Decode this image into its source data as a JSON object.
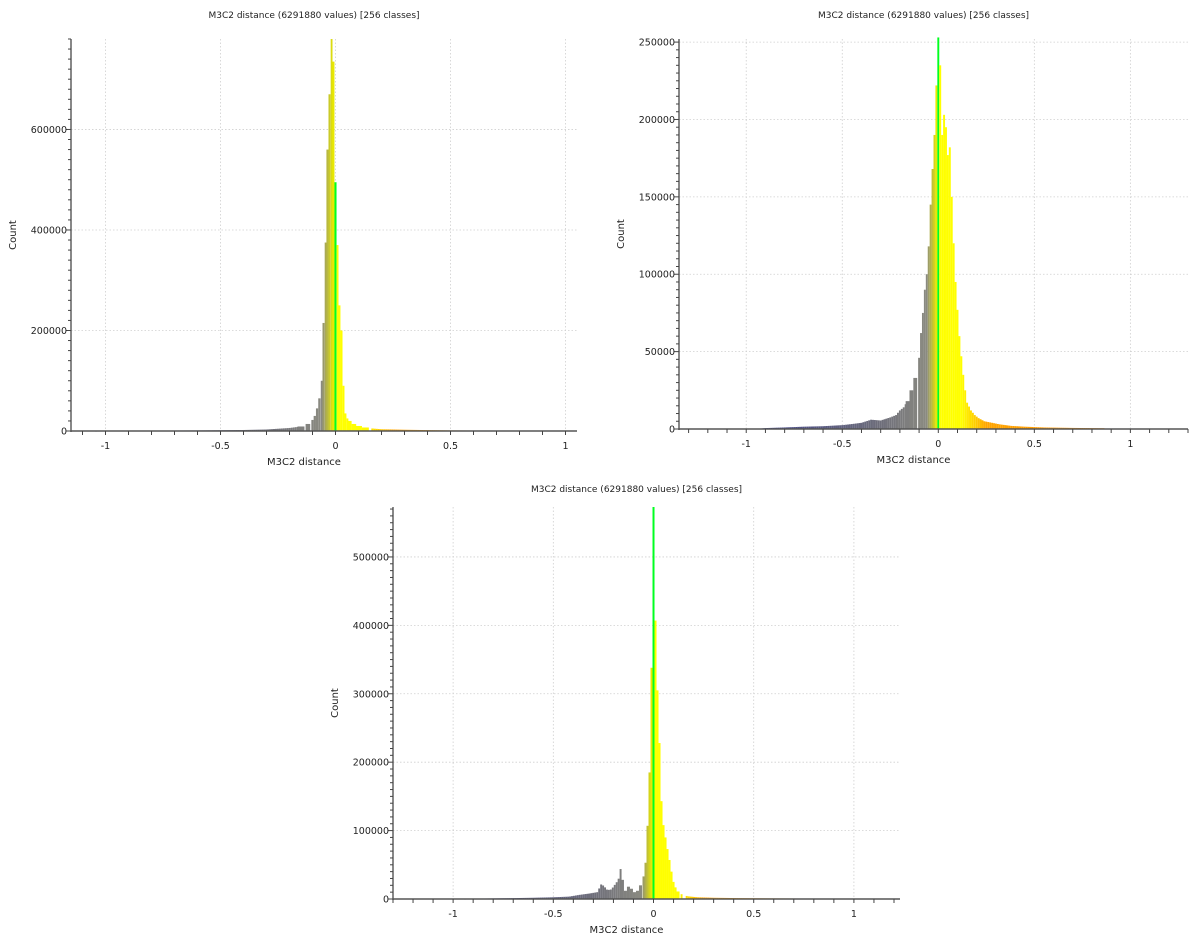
{
  "chart_data": [
    {
      "type": "bar",
      "title": "M3C2 distance (6291880 values)  [256 classes]",
      "xlabel": "M3C2 distance",
      "ylabel": "Count",
      "xlim": [
        -1.15,
        1.05
      ],
      "ylim": [
        0,
        780000
      ],
      "xticks": [
        -1,
        -0.5,
        0,
        0.5,
        1
      ],
      "xtick_labels": [
        "-1",
        "-0.5",
        "0",
        "0.5",
        "1"
      ],
      "yticks": [
        0,
        200000,
        400000,
        600000
      ],
      "ytick_labels": [
        "0",
        "200000",
        "400000",
        "600000"
      ],
      "grid": true,
      "bin_width": 0.0086,
      "bins": [
        {
          "x": -1.0,
          "y": 500
        },
        {
          "x": -0.8,
          "y": 800
        },
        {
          "x": -0.6,
          "y": 1200
        },
        {
          "x": -0.4,
          "y": 2000
        },
        {
          "x": -0.3,
          "y": 3000
        },
        {
          "x": -0.2,
          "y": 6000
        },
        {
          "x": -0.15,
          "y": 9000
        },
        {
          "x": -0.12,
          "y": 14000
        },
        {
          "x": -0.1,
          "y": 22000
        },
        {
          "x": -0.09,
          "y": 30000
        },
        {
          "x": -0.08,
          "y": 45000
        },
        {
          "x": -0.07,
          "y": 65000
        },
        {
          "x": -0.06,
          "y": 100000
        },
        {
          "x": -0.052,
          "y": 215000
        },
        {
          "x": -0.043,
          "y": 375000
        },
        {
          "x": -0.035,
          "y": 560000
        },
        {
          "x": -0.026,
          "y": 670000
        },
        {
          "x": -0.017,
          "y": 780000
        },
        {
          "x": -0.009,
          "y": 735000
        },
        {
          "x": 0.0,
          "y": 495000
        },
        {
          "x": 0.009,
          "y": 370000
        },
        {
          "x": 0.017,
          "y": 250000
        },
        {
          "x": 0.026,
          "y": 200000
        },
        {
          "x": 0.035,
          "y": 90000
        },
        {
          "x": 0.043,
          "y": 35000
        },
        {
          "x": 0.052,
          "y": 25000
        },
        {
          "x": 0.06,
          "y": 20000
        },
        {
          "x": 0.08,
          "y": 14000
        },
        {
          "x": 0.1,
          "y": 10000
        },
        {
          "x": 0.13,
          "y": 7000
        },
        {
          "x": 0.16,
          "y": 5000
        },
        {
          "x": 0.2,
          "y": 3500
        },
        {
          "x": 0.3,
          "y": 2500
        },
        {
          "x": 0.4,
          "y": 1800
        },
        {
          "x": 0.5,
          "y": 1200
        },
        {
          "x": 0.7,
          "y": 800
        },
        {
          "x": 0.86,
          "y": 600
        }
      ]
    },
    {
      "type": "bar",
      "title": "M3C2 distance (6291880 values)  [256 classes]",
      "xlabel": "M3C2 distance",
      "ylabel": "Count",
      "xlim": [
        -1.35,
        1.3
      ],
      "ylim": [
        0,
        252000
      ],
      "xticks": [
        -1,
        -0.5,
        0,
        0.5,
        1
      ],
      "xtick_labels": [
        "-1",
        "-0.5",
        "0",
        "0.5",
        "1"
      ],
      "yticks": [
        0,
        50000,
        100000,
        150000,
        200000,
        250000
      ],
      "ytick_labels": [
        "0",
        "50000",
        "100000",
        "150000",
        "200000",
        "250000"
      ],
      "grid": true,
      "bin_width": 0.01,
      "bins": [
        {
          "x": -0.9,
          "y": 600
        },
        {
          "x": -0.8,
          "y": 1000
        },
        {
          "x": -0.7,
          "y": 1500
        },
        {
          "x": -0.6,
          "y": 1800
        },
        {
          "x": -0.5,
          "y": 2500
        },
        {
          "x": -0.45,
          "y": 3200
        },
        {
          "x": -0.4,
          "y": 4000
        },
        {
          "x": -0.35,
          "y": 6000
        },
        {
          "x": -0.3,
          "y": 5500
        },
        {
          "x": -0.25,
          "y": 7500
        },
        {
          "x": -0.22,
          "y": 9000
        },
        {
          "x": -0.2,
          "y": 12000
        },
        {
          "x": -0.18,
          "y": 14000
        },
        {
          "x": -0.16,
          "y": 18000
        },
        {
          "x": -0.14,
          "y": 25000
        },
        {
          "x": -0.12,
          "y": 33000
        },
        {
          "x": -0.1,
          "y": 46000
        },
        {
          "x": -0.09,
          "y": 62000
        },
        {
          "x": -0.08,
          "y": 75000
        },
        {
          "x": -0.07,
          "y": 90000
        },
        {
          "x": -0.06,
          "y": 100000
        },
        {
          "x": -0.05,
          "y": 118000
        },
        {
          "x": -0.04,
          "y": 145000
        },
        {
          "x": -0.03,
          "y": 168000
        },
        {
          "x": -0.02,
          "y": 190000
        },
        {
          "x": -0.01,
          "y": 222000
        },
        {
          "x": 0.0,
          "y": 253000
        },
        {
          "x": 0.01,
          "y": 235000
        },
        {
          "x": 0.02,
          "y": 190000
        },
        {
          "x": 0.03,
          "y": 203000
        },
        {
          "x": 0.04,
          "y": 195000
        },
        {
          "x": 0.05,
          "y": 177000
        },
        {
          "x": 0.06,
          "y": 182000
        },
        {
          "x": 0.07,
          "y": 150000
        },
        {
          "x": 0.08,
          "y": 120000
        },
        {
          "x": 0.09,
          "y": 95000
        },
        {
          "x": 0.1,
          "y": 77000
        },
        {
          "x": 0.11,
          "y": 60000
        },
        {
          "x": 0.12,
          "y": 47000
        },
        {
          "x": 0.13,
          "y": 35000
        },
        {
          "x": 0.14,
          "y": 25000
        },
        {
          "x": 0.15,
          "y": 17000
        },
        {
          "x": 0.17,
          "y": 12000
        },
        {
          "x": 0.19,
          "y": 9000
        },
        {
          "x": 0.21,
          "y": 7000
        },
        {
          "x": 0.24,
          "y": 5000
        },
        {
          "x": 0.28,
          "y": 4000
        },
        {
          "x": 0.32,
          "y": 3000
        },
        {
          "x": 0.38,
          "y": 2000
        },
        {
          "x": 0.45,
          "y": 1500
        },
        {
          "x": 0.55,
          "y": 1000
        },
        {
          "x": 0.7,
          "y": 700
        },
        {
          "x": 0.85,
          "y": 500
        }
      ]
    },
    {
      "type": "bar",
      "title": "M3C2 distance (6291880 values)  [256 classes]",
      "xlabel": "M3C2 distance",
      "ylabel": "Count",
      "xlim": [
        -1.3,
        1.23
      ],
      "ylim": [
        0,
        573000
      ],
      "xticks": [
        -1,
        -0.5,
        0,
        0.5,
        1
      ],
      "xtick_labels": [
        "-1",
        "-0.5",
        "0",
        "0.5",
        "1"
      ],
      "yticks": [
        0,
        100000,
        200000,
        300000,
        400000,
        500000
      ],
      "ytick_labels": [
        "0",
        "100000",
        "200000",
        "300000",
        "400000",
        "500000"
      ],
      "grid": true,
      "bin_width": 0.0097,
      "bins": [
        {
          "x": -0.9,
          "y": 500
        },
        {
          "x": -0.8,
          "y": 900
        },
        {
          "x": -0.7,
          "y": 1300
        },
        {
          "x": -0.6,
          "y": 1800
        },
        {
          "x": -0.5,
          "y": 2500
        },
        {
          "x": -0.42,
          "y": 3500
        },
        {
          "x": -0.37,
          "y": 6000
        },
        {
          "x": -0.32,
          "y": 8000
        },
        {
          "x": -0.28,
          "y": 10000
        },
        {
          "x": -0.26,
          "y": 22000
        },
        {
          "x": -0.245,
          "y": 18000
        },
        {
          "x": -0.23,
          "y": 13000
        },
        {
          "x": -0.21,
          "y": 14000
        },
        {
          "x": -0.19,
          "y": 22000
        },
        {
          "x": -0.175,
          "y": 28000
        },
        {
          "x": -0.165,
          "y": 45000
        },
        {
          "x": -0.155,
          "y": 28000
        },
        {
          "x": -0.14,
          "y": 12000
        },
        {
          "x": -0.125,
          "y": 18000
        },
        {
          "x": -0.11,
          "y": 15000
        },
        {
          "x": -0.095,
          "y": 10000
        },
        {
          "x": -0.08,
          "y": 12000
        },
        {
          "x": -0.065,
          "y": 20000
        },
        {
          "x": -0.05,
          "y": 33000
        },
        {
          "x": -0.04,
          "y": 53000
        },
        {
          "x": -0.03,
          "y": 107000
        },
        {
          "x": -0.02,
          "y": 185000
        },
        {
          "x": -0.01,
          "y": 338000
        },
        {
          "x": 0.0,
          "y": 573000
        },
        {
          "x": 0.01,
          "y": 407000
        },
        {
          "x": 0.02,
          "y": 305000
        },
        {
          "x": 0.03,
          "y": 228000
        },
        {
          "x": 0.04,
          "y": 143000
        },
        {
          "x": 0.05,
          "y": 108000
        },
        {
          "x": 0.06,
          "y": 90000
        },
        {
          "x": 0.07,
          "y": 73000
        },
        {
          "x": 0.08,
          "y": 57000
        },
        {
          "x": 0.09,
          "y": 40000
        },
        {
          "x": 0.1,
          "y": 25000
        },
        {
          "x": 0.11,
          "y": 17000
        },
        {
          "x": 0.12,
          "y": 11000
        },
        {
          "x": 0.14,
          "y": 7000
        },
        {
          "x": 0.17,
          "y": 4000
        },
        {
          "x": 0.22,
          "y": 2500
        },
        {
          "x": 0.3,
          "y": 1800
        },
        {
          "x": 0.45,
          "y": 1200
        },
        {
          "x": 0.6,
          "y": 900
        },
        {
          "x": 0.75,
          "y": 700
        },
        {
          "x": 0.86,
          "y": 500
        }
      ]
    }
  ],
  "colors": {
    "grid": "#cfcfcf",
    "axis": "#555555",
    "ramp": [
      "#3c3f88",
      "#6e6e7a",
      "#8a8a80",
      "#e8e800",
      "#00ff20",
      "#ffff00",
      "#ffa500",
      "#ff8c00"
    ]
  }
}
